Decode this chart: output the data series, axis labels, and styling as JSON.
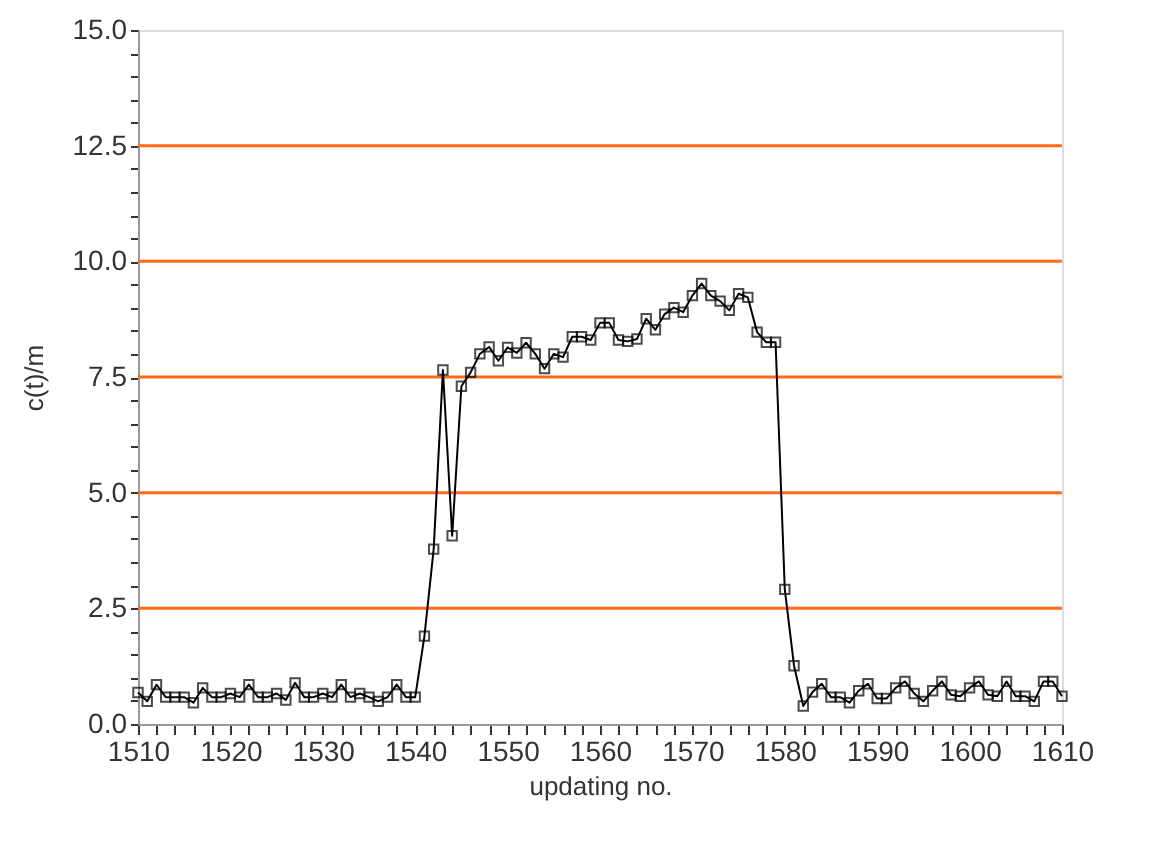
{
  "chart_data": {
    "type": "line",
    "xlabel": "updating no.",
    "ylabel": "c(t)/m",
    "x": [
      1510,
      1511,
      1512,
      1513,
      1514,
      1515,
      1516,
      1517,
      1518,
      1519,
      1520,
      1521,
      1522,
      1523,
      1524,
      1525,
      1526,
      1527,
      1528,
      1529,
      1530,
      1531,
      1532,
      1533,
      1534,
      1535,
      1536,
      1537,
      1538,
      1539,
      1540,
      1541,
      1542,
      1543,
      1544,
      1545,
      1546,
      1547,
      1548,
      1549,
      1550,
      1551,
      1552,
      1553,
      1554,
      1555,
      1556,
      1557,
      1558,
      1559,
      1560,
      1561,
      1562,
      1563,
      1564,
      1565,
      1566,
      1567,
      1568,
      1569,
      1570,
      1571,
      1572,
      1573,
      1574,
      1575,
      1576,
      1577,
      1578,
      1579,
      1580,
      1581,
      1582,
      1583,
      1584,
      1585,
      1586,
      1587,
      1588,
      1589,
      1590,
      1591,
      1592,
      1593,
      1594,
      1595,
      1596,
      1597,
      1598,
      1599,
      1600,
      1601,
      1602,
      1603,
      1604,
      1605,
      1606,
      1607,
      1608,
      1609,
      1610
    ],
    "series": [
      {
        "color": "#000000",
        "values": [
          0.68,
          0.49,
          0.85,
          0.58,
          0.58,
          0.58,
          0.46,
          0.78,
          0.58,
          0.58,
          0.66,
          0.58,
          0.85,
          0.58,
          0.58,
          0.66,
          0.52,
          0.89,
          0.58,
          0.58,
          0.66,
          0.58,
          0.85,
          0.58,
          0.66,
          0.58,
          0.49,
          0.58,
          0.85,
          0.58,
          0.58,
          1.9,
          3.78,
          7.65,
          4.07,
          7.3,
          7.6,
          8.0,
          8.15,
          7.85,
          8.14,
          8.02,
          8.24,
          8.0,
          7.68,
          8.0,
          7.93,
          8.37,
          8.37,
          8.3,
          8.67,
          8.67,
          8.3,
          8.27,
          8.32,
          8.76,
          8.52,
          8.86,
          9.0,
          8.9,
          9.26,
          9.52,
          9.26,
          9.14,
          8.94,
          9.3,
          9.22,
          8.47,
          8.25,
          8.25,
          2.91,
          1.26,
          0.39,
          0.69,
          0.87,
          0.58,
          0.58,
          0.46,
          0.72,
          0.87,
          0.55,
          0.55,
          0.78,
          0.92,
          0.66,
          0.49,
          0.72,
          0.92,
          0.63,
          0.6,
          0.78,
          0.92,
          0.63,
          0.6,
          0.92,
          0.6,
          0.6,
          0.49,
          0.92,
          0.92,
          0.6
        ]
      }
    ],
    "xlim": [
      1510,
      1610
    ],
    "xticks": [
      1510,
      {
        "value": 1512,
        "label": null
      },
      {
        "value": 1514,
        "label": null
      },
      {
        "value": 1516,
        "label": null
      },
      {
        "value": 1518,
        "label": null
      },
      1520,
      {
        "value": 1522,
        "label": null
      },
      {
        "value": 1524,
        "label": null
      },
      {
        "value": 1526,
        "label": null
      },
      {
        "value": 1528,
        "label": null
      },
      1530,
      {
        "value": 1532,
        "label": null
      },
      {
        "value": 1534,
        "label": null
      },
      {
        "value": 1536,
        "label": null
      },
      {
        "value": 1538,
        "label": null
      },
      1540,
      {
        "value": 1542,
        "label": null
      },
      {
        "value": 1544,
        "label": null
      },
      {
        "value": 1546,
        "label": null
      },
      {
        "value": 1548,
        "label": null
      },
      1550,
      {
        "value": 1552,
        "label": null
      },
      {
        "value": 1554,
        "label": null
      },
      {
        "value": 1556,
        "label": null
      },
      {
        "value": 1558,
        "label": null
      },
      1560,
      {
        "value": 1562,
        "label": null
      },
      {
        "value": 1564,
        "label": null
      },
      {
        "value": 1566,
        "label": null
      },
      {
        "value": 1568,
        "label": null
      },
      1570,
      {
        "value": 1572,
        "label": null
      },
      {
        "value": 1574,
        "label": null
      },
      {
        "value": 1576,
        "label": null
      },
      {
        "value": 1578,
        "label": null
      },
      1580,
      {
        "value": 1582,
        "label": null
      },
      {
        "value": 1584,
        "label": null
      },
      {
        "value": 1586,
        "label": null
      },
      {
        "value": 1588,
        "label": null
      },
      1590,
      {
        "value": 1592,
        "label": null
      },
      {
        "value": 1594,
        "label": null
      },
      {
        "value": 1596,
        "label": null
      },
      {
        "value": 1598,
        "label": null
      },
      1600,
      {
        "value": 1602,
        "label": null
      },
      {
        "value": 1604,
        "label": null
      },
      {
        "value": 1606,
        "label": null
      },
      {
        "value": 1608,
        "label": null
      },
      1610
    ],
    "ylim": [
      0,
      15
    ],
    "yticks": [
      {
        "value": 0,
        "label": "0.0"
      },
      {
        "value": 0.5,
        "label": null
      },
      {
        "value": 1,
        "label": null
      },
      {
        "value": 1.5,
        "label": null
      },
      {
        "value": 2,
        "label": null
      },
      2.5,
      {
        "value": 3,
        "label": null
      },
      {
        "value": 3.5,
        "label": null
      },
      {
        "value": 4,
        "label": null
      },
      {
        "value": 4.5,
        "label": null
      },
      {
        "value": 5,
        "label": "5.0"
      },
      {
        "value": 5.5,
        "label": null
      },
      {
        "value": 6,
        "label": null
      },
      {
        "value": 6.5,
        "label": null
      },
      {
        "value": 7,
        "label": null
      },
      7.5,
      {
        "value": 8,
        "label": null
      },
      {
        "value": 8.5,
        "label": null
      },
      {
        "value": 9,
        "label": null
      },
      {
        "value": 9.5,
        "label": null
      },
      {
        "value": 10,
        "label": "10.0"
      },
      {
        "value": 10.5,
        "label": null
      },
      {
        "value": 11,
        "label": null
      },
      {
        "value": 11.5,
        "label": null
      },
      {
        "value": 12,
        "label": null
      },
      12.5,
      {
        "value": 13,
        "label": null
      },
      {
        "value": 13.5,
        "label": null
      },
      {
        "value": 14,
        "label": null
      },
      {
        "value": 14.5,
        "label": null
      },
      {
        "value": 15,
        "label": "15.0"
      }
    ],
    "grid": "y",
    "marker": "square",
    "line_style": "solid"
  }
}
